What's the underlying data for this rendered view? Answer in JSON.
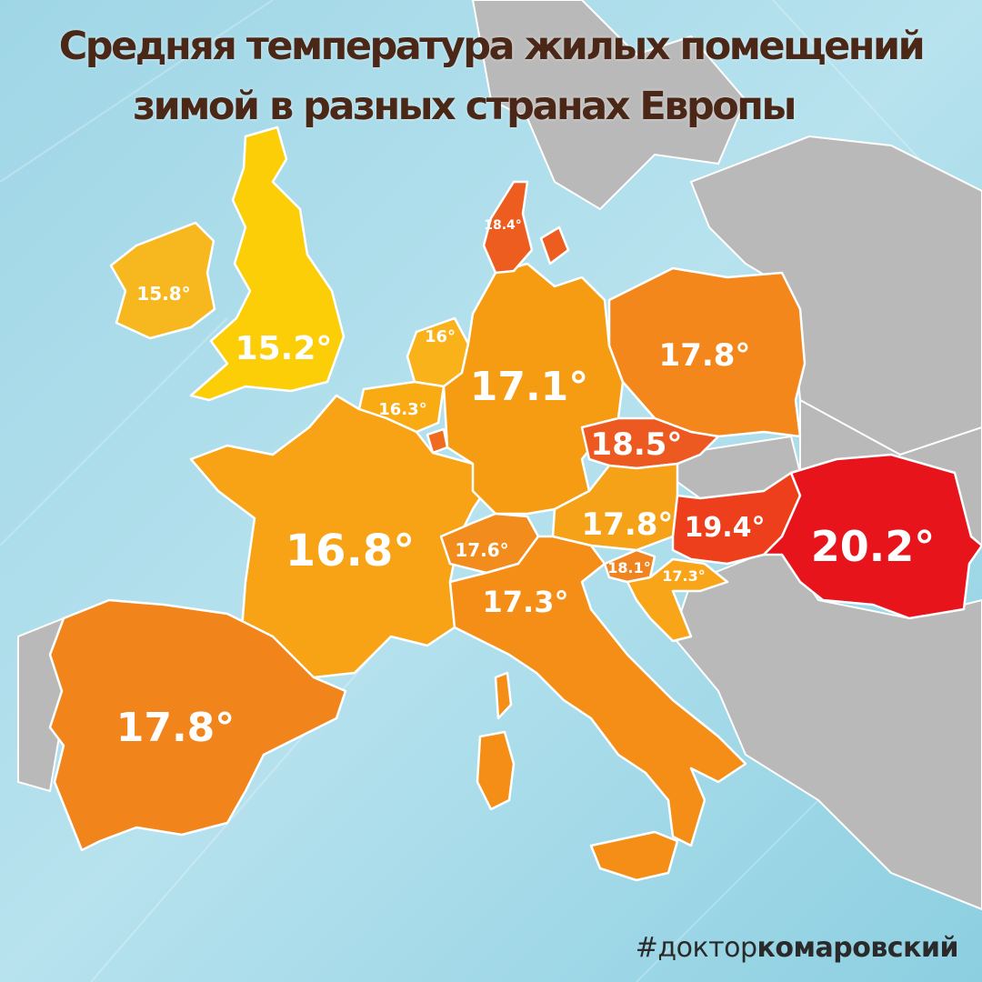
{
  "title_line1": "Средняя температура жилых помещений",
  "title_line2": "зимой в разных странах Европы",
  "hashtag_prefix": "#доктор",
  "hashtag_bold": "комаровский",
  "countries": [
    {
      "key": "ireland",
      "label": "15.8°",
      "value": 15.8,
      "color": "#f7b81f"
    },
    {
      "key": "uk",
      "label": "15.2°",
      "value": 15.2,
      "color": "#fcce08"
    },
    {
      "key": "netherlands",
      "label": "16°",
      "value": 16,
      "color": "#f9b21a"
    },
    {
      "key": "belgium",
      "label": "16.3°",
      "value": 16.3,
      "color": "#f8ab12"
    },
    {
      "key": "france",
      "label": "16.8°",
      "value": 16.8,
      "color": "#f7a315"
    },
    {
      "key": "germany",
      "label": "17.1°",
      "value": 17.1,
      "color": "#f59c13"
    },
    {
      "key": "denmark",
      "label": "18.4°",
      "value": 18.4,
      "color": "#ee5d20"
    },
    {
      "key": "poland",
      "label": "17.8°",
      "value": 17.8,
      "color": "#f4871b"
    },
    {
      "key": "czechia",
      "label": "18.5°",
      "value": 18.5,
      "color": "#ec5a22"
    },
    {
      "key": "austria",
      "label": "17.8°",
      "value": 17.8,
      "color": "#f6a219"
    },
    {
      "key": "switzerland",
      "label": "17.6°",
      "value": 17.6,
      "color": "#f28d1d"
    },
    {
      "key": "italy",
      "label": "17.3°",
      "value": 17.3,
      "color": "#f58e16"
    },
    {
      "key": "slovenia",
      "label": "18.1°",
      "value": 18.1,
      "color": "#f08421"
    },
    {
      "key": "croatia",
      "label": "17.3°",
      "value": 17.3,
      "color": "#f9a51a"
    },
    {
      "key": "hungary",
      "label": "19.4°",
      "value": 19.4,
      "color": "#ee3f1c"
    },
    {
      "key": "romania",
      "label": "20.2°",
      "value": 20.2,
      "color": "#e8141c"
    },
    {
      "key": "spain",
      "label": "17.8°",
      "value": 17.8,
      "color": "#f1851b"
    }
  ],
  "colors": {
    "sea": "#a9dbe8",
    "non_data_land": "#b8b8b8",
    "border": "#ffffff",
    "title": "#4a2716"
  }
}
